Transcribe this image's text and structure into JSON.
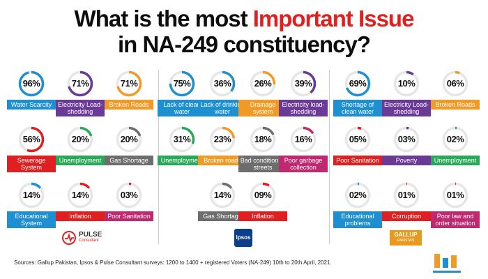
{
  "header": {
    "title_line1_a": "What is the most ",
    "title_line1_b": "Important Issue",
    "title_line2": "in NA-249 constituency?"
  },
  "colors": {
    "red": "#e02020",
    "blue": "#1e8fd0",
    "purple": "#6b3a96",
    "orange": "#f29a26",
    "green": "#2aa85a",
    "gray": "#6d6d6d",
    "magenta": "#c0286f",
    "track": "#e6e6e6"
  },
  "chart_data": [
    {
      "type": "donut",
      "title": "",
      "source_logo": "PULSE Consultant",
      "categories": [
        "Water Scarcity",
        "Electricity Load-shedding",
        "Broken Roads",
        "Sewerage System",
        "Unemployment",
        "Gas Shortage",
        "Educational System",
        "Inflation",
        "Poor Sanitation"
      ],
      "values": [
        96,
        71,
        71,
        56,
        20,
        20,
        14,
        14,
        3
      ],
      "value_labels": [
        "96%",
        "71%",
        "71%",
        "56%",
        "20%",
        "20%",
        "14%",
        "14%",
        "03%"
      ],
      "colors": [
        "blue",
        "purple",
        "orange",
        "red",
        "green",
        "gray",
        "blue",
        "red",
        "magenta"
      ]
    },
    {
      "type": "donut",
      "title": "",
      "source_logo": "Ipsos",
      "categories": [
        "Lack of clean water",
        "Lack of drinking water",
        "Drainage system",
        "Electricity load-shedding",
        "Unemployment",
        "Broken roads",
        "Bad condition of streets",
        "Poor garbage collection",
        "Gas Shortage",
        "Inflation"
      ],
      "values": [
        75,
        36,
        26,
        39,
        31,
        23,
        18,
        16,
        14,
        9
      ],
      "value_labels": [
        "75%",
        "36%",
        "26%",
        "39%",
        "31%",
        "23%",
        "18%",
        "16%",
        "14%",
        "09%"
      ],
      "colors": [
        "blue",
        "blue",
        "orange",
        "purple",
        "green",
        "orange",
        "gray",
        "magenta",
        "gray",
        "red"
      ]
    },
    {
      "type": "donut",
      "title": "",
      "source_logo": "GALLUP PAKISTAN",
      "categories": [
        "Shortage of clean water",
        "Electricity Load-shedding",
        "Broken Roads",
        "Poor Sanitation",
        "Poverty",
        "Unemployment",
        "Educational problems",
        "Corruption",
        "Poor law and order situation"
      ],
      "values": [
        69,
        10,
        6,
        5,
        3,
        2,
        2,
        1,
        1
      ],
      "value_labels": [
        "69%",
        "10%",
        "06%",
        "05%",
        "03%",
        "02%",
        "02%",
        "01%",
        "01%"
      ],
      "colors": [
        "blue",
        "purple",
        "orange",
        "red",
        "purple",
        "green",
        "blue",
        "red",
        "magenta"
      ]
    }
  ],
  "logos": {
    "pulse_line1": "PULSE",
    "pulse_line2": "Consultant",
    "ipsos": "Ipsos",
    "gallup_line1": "GALLUP",
    "gallup_line2": "PAKISTAN"
  },
  "footer": {
    "sources": "Sources: Gallup Pakistan, Ipsos & Pulse Consultant surveys: 1200 to 1400 + registered Voters (NA-249) 10th to 20th April, 2021."
  }
}
